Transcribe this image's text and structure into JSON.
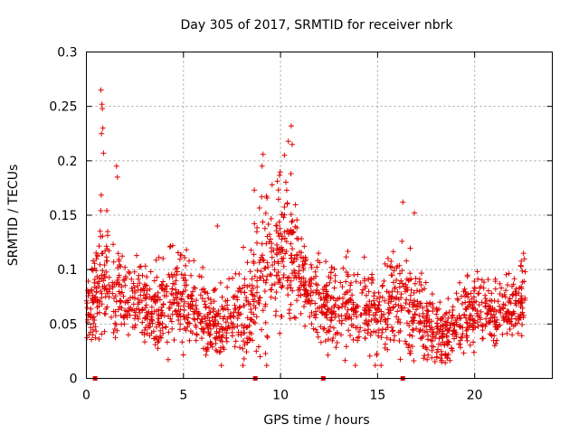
{
  "chart_data": {
    "type": "scatter",
    "title": "Day 305 of 2017, SRMTID for receiver nbrk",
    "xlabel": "GPS time / hours",
    "ylabel": "SRMTID / TECUs",
    "xlim": [
      0,
      24
    ],
    "ylim": [
      0,
      0.3
    ],
    "x_ticks": [
      0,
      5,
      10,
      15,
      20
    ],
    "x_tick_labels": [
      "0",
      "5",
      "10",
      "15",
      "20"
    ],
    "y_ticks": [
      0,
      0.05,
      0.1,
      0.15,
      0.2,
      0.25,
      0.3
    ],
    "y_tick_labels": [
      "0",
      "0.05",
      "0.1",
      "0.15",
      "0.2",
      "0.25",
      "0.3"
    ],
    "grid": true,
    "marker": "plus",
    "series_color": "#e00000",
    "zero_markers_x": [
      0.45,
      8.7,
      12.2,
      16.3
    ],
    "envelope": {
      "hours": [
        0.0,
        0.3,
        0.6,
        0.8,
        1.0,
        1.3,
        1.6,
        2.0,
        2.5,
        3.0,
        3.5,
        4.0,
        4.5,
        5.0,
        5.5,
        6.0,
        6.5,
        7.0,
        7.5,
        8.0,
        8.5,
        8.8,
        9.2,
        9.6,
        10.0,
        10.3,
        10.6,
        11.0,
        11.5,
        12.0,
        12.5,
        13.0,
        13.5,
        14.0,
        14.5,
        15.0,
        15.5,
        16.0,
        16.3,
        16.7,
        17.0,
        17.5,
        18.0,
        18.5,
        19.0,
        19.5,
        20.0,
        20.5,
        21.0,
        21.5,
        22.0,
        22.3,
        22.6
      ],
      "center": [
        0.06,
        0.065,
        0.08,
        0.1,
        0.09,
        0.085,
        0.08,
        0.075,
        0.07,
        0.065,
        0.065,
        0.068,
        0.07,
        0.07,
        0.065,
        0.055,
        0.048,
        0.05,
        0.055,
        0.06,
        0.07,
        0.085,
        0.1,
        0.11,
        0.11,
        0.12,
        0.11,
        0.09,
        0.08,
        0.07,
        0.062,
        0.062,
        0.065,
        0.065,
        0.062,
        0.06,
        0.062,
        0.065,
        0.07,
        0.068,
        0.06,
        0.05,
        0.04,
        0.038,
        0.045,
        0.058,
        0.062,
        0.058,
        0.055,
        0.06,
        0.065,
        0.07,
        0.075
      ],
      "spread": [
        0.02,
        0.025,
        0.05,
        0.06,
        0.045,
        0.05,
        0.035,
        0.03,
        0.03,
        0.03,
        0.032,
        0.035,
        0.035,
        0.035,
        0.03,
        0.03,
        0.028,
        0.03,
        0.03,
        0.035,
        0.04,
        0.045,
        0.055,
        0.05,
        0.06,
        0.07,
        0.05,
        0.03,
        0.028,
        0.03,
        0.03,
        0.03,
        0.035,
        0.035,
        0.035,
        0.035,
        0.035,
        0.04,
        0.05,
        0.045,
        0.035,
        0.03,
        0.025,
        0.022,
        0.025,
        0.03,
        0.028,
        0.025,
        0.025,
        0.025,
        0.025,
        0.028,
        0.03
      ]
    },
    "peaks": [
      {
        "x": 0.75,
        "y": 0.265
      },
      {
        "x": 0.8,
        "y": 0.252
      },
      {
        "x": 0.82,
        "y": 0.248
      },
      {
        "x": 0.85,
        "y": 0.23
      },
      {
        "x": 0.78,
        "y": 0.225
      },
      {
        "x": 0.88,
        "y": 0.207
      },
      {
        "x": 1.55,
        "y": 0.195
      },
      {
        "x": 1.6,
        "y": 0.185
      },
      {
        "x": 9.1,
        "y": 0.206
      },
      {
        "x": 9.05,
        "y": 0.195
      },
      {
        "x": 10.55,
        "y": 0.232
      },
      {
        "x": 10.4,
        "y": 0.218
      },
      {
        "x": 10.6,
        "y": 0.215
      },
      {
        "x": 10.2,
        "y": 0.205
      },
      {
        "x": 16.3,
        "y": 0.162
      },
      {
        "x": 16.9,
        "y": 0.152
      },
      {
        "x": 8.65,
        "y": 0.173
      },
      {
        "x": 6.75,
        "y": 0.14
      },
      {
        "x": 8.75,
        "y": 0.025
      },
      {
        "x": 8.95,
        "y": 0.02
      },
      {
        "x": 18.3,
        "y": 0.015
      }
    ],
    "n_points": 1900
  }
}
